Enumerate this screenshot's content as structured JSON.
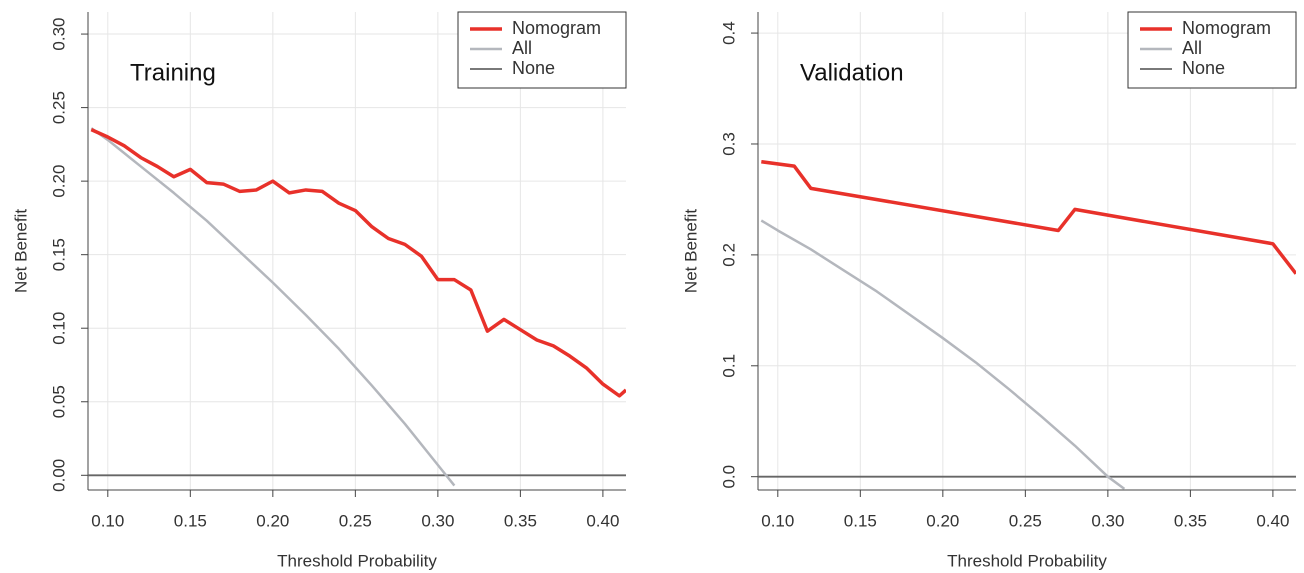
{
  "chart_data": [
    {
      "type": "line",
      "annotation": "Training",
      "xlabel": "Threshold Probability",
      "ylabel": "Net Benefit",
      "xlim": [
        0.088,
        0.414
      ],
      "ylim": [
        -0.01,
        0.315
      ],
      "xticks": [
        {
          "value": 0.1,
          "label": "0.10"
        },
        0.15,
        {
          "value": 0.2,
          "label": "0.20"
        },
        0.25,
        {
          "value": 0.3,
          "label": "0.30"
        },
        0.35,
        {
          "value": 0.4,
          "label": "0.40"
        }
      ],
      "yticks": [
        {
          "value": 0,
          "label": "0.00"
        },
        0.05,
        {
          "value": 0.1,
          "label": "0.10"
        },
        0.15,
        {
          "value": 0.2,
          "label": "0.20"
        },
        0.25,
        {
          "value": 0.3,
          "label": "0.30"
        }
      ],
      "grid": true,
      "legend": "top-right",
      "series": [
        {
          "name": "Nomogram",
          "color": "#e8312a",
          "width": 3.5,
          "x": [
            0.09,
            0.1,
            0.11,
            0.12,
            0.13,
            0.14,
            0.15,
            0.16,
            0.17,
            0.18,
            0.19,
            0.2,
            0.21,
            0.22,
            0.23,
            0.24,
            0.25,
            0.26,
            0.27,
            0.28,
            0.29,
            0.3,
            0.31,
            0.32,
            0.33,
            0.34,
            0.35,
            0.36,
            0.37,
            0.38,
            0.39,
            0.4,
            0.41,
            0.414
          ],
          "values": [
            0.235,
            0.23,
            0.224,
            0.216,
            0.21,
            0.203,
            0.208,
            0.199,
            0.198,
            0.193,
            0.194,
            0.2,
            0.192,
            0.194,
            0.193,
            0.185,
            0.18,
            0.169,
            0.161,
            0.157,
            0.149,
            0.133,
            0.133,
            0.126,
            0.098,
            0.106,
            0.099,
            0.092,
            0.088,
            0.081,
            0.073,
            0.062,
            0.054,
            0.058
          ]
        },
        {
          "name": "All",
          "color": "#b4b7bd",
          "width": 2.5,
          "x": [
            0.09,
            0.1,
            0.12,
            0.14,
            0.16,
            0.18,
            0.2,
            0.22,
            0.24,
            0.26,
            0.28,
            0.3,
            0.31
          ],
          "values": [
            0.236,
            0.228,
            0.21,
            0.192,
            0.173,
            0.152,
            0.131,
            0.109,
            0.086,
            0.061,
            0.035,
            0.007,
            -0.007
          ]
        },
        {
          "name": "None",
          "color": "#666666",
          "width": 1.8,
          "x": [
            0.088,
            0.414
          ],
          "values": [
            0,
            0
          ]
        }
      ]
    },
    {
      "type": "line",
      "annotation": "Validation",
      "xlabel": "Threshold Probability",
      "ylabel": "Net Benefit",
      "xlim": [
        0.088,
        0.414
      ],
      "ylim": [
        -0.012,
        0.419
      ],
      "xticks": [
        {
          "value": 0.1,
          "label": "0.10"
        },
        0.15,
        {
          "value": 0.2,
          "label": "0.20"
        },
        0.25,
        {
          "value": 0.3,
          "label": "0.30"
        },
        0.35,
        {
          "value": 0.4,
          "label": "0.40"
        }
      ],
      "yticks": [
        {
          "value": 0,
          "label": "0.0"
        },
        0.1,
        0.2,
        0.3,
        0.4
      ],
      "grid": true,
      "legend": "top-right",
      "series": [
        {
          "name": "Nomogram",
          "color": "#e8312a",
          "width": 3.5,
          "x": [
            0.09,
            0.11,
            0.12,
            0.27,
            0.28,
            0.4,
            0.414
          ],
          "values": [
            0.284,
            0.28,
            0.26,
            0.222,
            0.241,
            0.21,
            0.183
          ]
        },
        {
          "name": "All",
          "color": "#b4b7bd",
          "width": 2.5,
          "x": [
            0.09,
            0.1,
            0.12,
            0.14,
            0.16,
            0.18,
            0.2,
            0.22,
            0.24,
            0.26,
            0.28,
            0.3,
            0.31
          ],
          "values": [
            0.231,
            0.222,
            0.205,
            0.186,
            0.167,
            0.146,
            0.125,
            0.103,
            0.079,
            0.054,
            0.028,
            0.0,
            -0.011
          ]
        },
        {
          "name": "None",
          "color": "#666666",
          "width": 1.8,
          "x": [
            0.088,
            0.414
          ],
          "values": [
            0,
            0
          ]
        }
      ]
    }
  ]
}
